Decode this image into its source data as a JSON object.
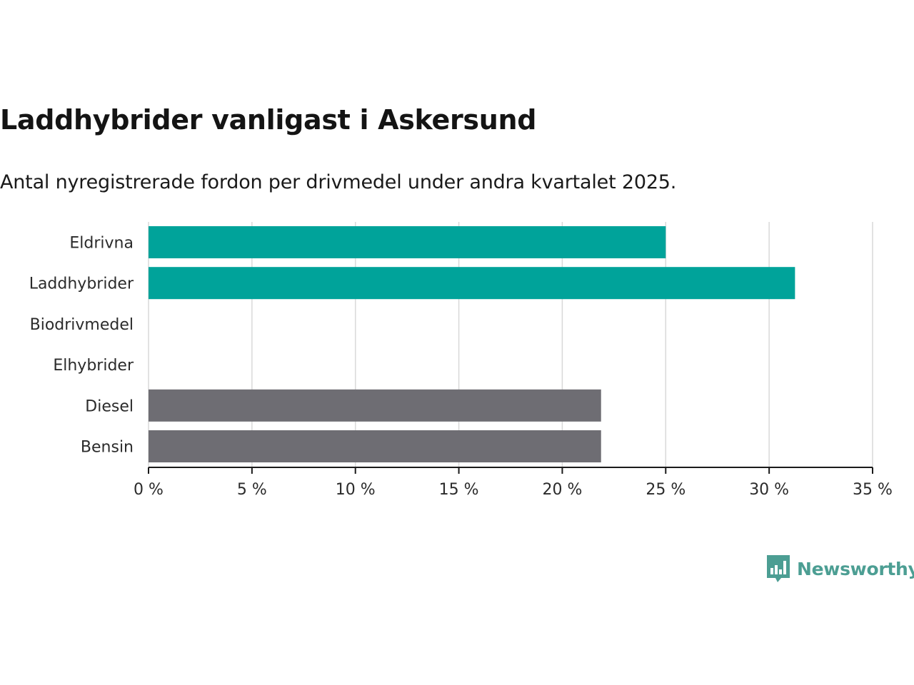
{
  "title": "Laddhybrider vanligast i Askersund",
  "subtitle": "Antal nyregistrerade fordon per drivmedel under andra kvartalet 2025.",
  "brand": {
    "name": "Newsworthy",
    "color": "#4c9e93",
    "icon": "bar-chart-speech-bubble-icon"
  },
  "colors": {
    "highlight": "#00a39a",
    "default": "#6e6d73",
    "grid": "#d9d9d9",
    "axis": "#1a1a1a"
  },
  "chart_data": {
    "type": "bar",
    "orientation": "horizontal",
    "categories": [
      "Eldrivna",
      "Laddhybrider",
      "Biodrivmedel",
      "Elhybrider",
      "Diesel",
      "Bensin"
    ],
    "values": [
      25.0,
      31.25,
      0,
      0,
      21.875,
      21.875
    ],
    "bar_colors": [
      "#00a39a",
      "#00a39a",
      "#6e6d73",
      "#6e6d73",
      "#6e6d73",
      "#6e6d73"
    ],
    "xlim": [
      0,
      35
    ],
    "xticks": [
      0,
      5,
      10,
      15,
      20,
      25,
      30,
      35
    ],
    "xtick_labels": [
      "0 %",
      "5 %",
      "10 %",
      "15 %",
      "20 %",
      "25 %",
      "30 %",
      "35 %"
    ],
    "xlabel": "",
    "ylabel": "",
    "grid": "vertical",
    "legend": "none"
  }
}
